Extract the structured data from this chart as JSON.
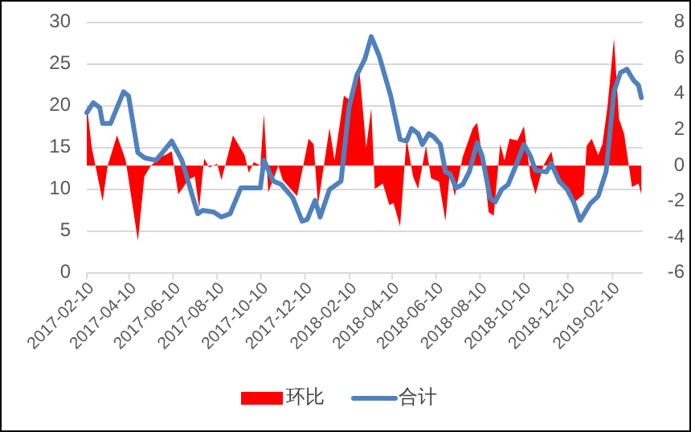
{
  "chart_data": {
    "type": "line",
    "xlim": [
      "2017-02-10",
      "2019-03-24"
    ],
    "xticks": [
      "2017-02-10",
      "2017-04-10",
      "2017-06-10",
      "2017-08-10",
      "2017-10-10",
      "2017-12-10",
      "2018-02-10",
      "2018-04-10",
      "2018-06-10",
      "2018-08-10",
      "2018-10-10",
      "2018-12-10",
      "2019-02-10"
    ],
    "ylim": [
      0,
      30
    ],
    "yticks": [
      0,
      5,
      10,
      15,
      20,
      25,
      30
    ],
    "y2lim": [
      -6,
      8
    ],
    "y2ticks": [
      -6,
      -4,
      -2,
      0,
      2,
      4,
      6,
      8
    ],
    "grid": "y",
    "legend": "bottom",
    "series": [
      {
        "name": "环比",
        "type": "area",
        "axis": "y2",
        "color": "#ff0000",
        "x": [
          "2017-02-10",
          "2017-02-17",
          "2017-03-04",
          "2017-03-11",
          "2017-03-24",
          "2017-04-05",
          "2017-04-22",
          "2017-05-01",
          "2017-05-10",
          "2017-05-24",
          "2017-05-30",
          "2017-06-08",
          "2017-06-17",
          "2017-07-01",
          "2017-07-10",
          "2017-07-16",
          "2017-07-23",
          "2017-07-30",
          "2017-08-10",
          "2017-08-16",
          "2017-09-01",
          "2017-09-17",
          "2017-09-23",
          "2017-09-30",
          "2017-10-09",
          "2017-10-14",
          "2017-10-20",
          "2017-11-03",
          "2017-11-09",
          "2017-11-29",
          "2017-12-15",
          "2017-12-22",
          "2017-12-28",
          "2018-01-13",
          "2018-01-20",
          "2018-02-02",
          "2018-02-09",
          "2018-02-16",
          "2018-02-24",
          "2018-03-05",
          "2018-03-12",
          "2018-03-17",
          "2018-03-28",
          "2018-04-06",
          "2018-04-12",
          "2018-04-21",
          "2018-04-30",
          "2018-05-09",
          "2018-05-16",
          "2018-05-27",
          "2018-06-03",
          "2018-06-14",
          "2018-06-23",
          "2018-06-29",
          "2018-07-06",
          "2018-07-17",
          "2018-07-31",
          "2018-08-06",
          "2018-08-15",
          "2018-08-22",
          "2018-08-29",
          "2018-09-07",
          "2018-09-13",
          "2018-09-20",
          "2018-10-01",
          "2018-10-10",
          "2018-10-19",
          "2018-10-26",
          "2018-11-06",
          "2018-11-17",
          "2018-11-26",
          "2018-12-07",
          "2018-12-18",
          "2019-01-01",
          "2019-01-05",
          "2019-01-12",
          "2019-01-21",
          "2019-01-27",
          "2019-02-03",
          "2019-02-12",
          "2019-02-19",
          "2019-02-26",
          "2019-03-09",
          "2019-03-18",
          "2019-03-22"
        ],
        "values": [
          3.4,
          1.0,
          -2.0,
          0,
          1.7,
          0.3,
          -4.2,
          -0.6,
          0,
          0.5,
          0.6,
          0.8,
          -1.6,
          -0.8,
          -0.6,
          -2.4,
          0.4,
          -0.1,
          0.1,
          -0.8,
          1.7,
          0.6,
          -0.4,
          0.2,
          0,
          2.9,
          -1.5,
          0,
          -0.8,
          -1.7,
          1.5,
          1.2,
          -2.2,
          2.1,
          0.3,
          3.9,
          3.7,
          4.8,
          5.1,
          1.0,
          3.2,
          -1.3,
          -1.0,
          -2.2,
          -2.1,
          -3.4,
          1.5,
          -0.6,
          -1.3,
          1.1,
          -0.7,
          -0.9,
          -3.1,
          -0.4,
          -1.7,
          0.5,
          2.1,
          2.4,
          0,
          -2.6,
          -2.8,
          1.2,
          0.3,
          1.5,
          1.4,
          2.2,
          -0.6,
          -1.6,
          0,
          0.8,
          -1.0,
          -1.3,
          -2.1,
          -1.6,
          1.1,
          1.5,
          0.6,
          1.2,
          3.3,
          7.1,
          2.6,
          1.8,
          -1.2,
          -1.0,
          -1.6
        ]
      },
      {
        "name": "合计",
        "color": "#4f81bd",
        "x": [
          "2017-02-10",
          "2017-02-19",
          "2017-02-28",
          "2017-03-04",
          "2017-03-15",
          "2017-04-02",
          "2017-04-09",
          "2017-04-22",
          "2017-05-01",
          "2017-05-17",
          "2017-05-24",
          "2017-06-08",
          "2017-06-22",
          "2017-07-14",
          "2017-07-21",
          "2017-08-05",
          "2017-08-16",
          "2017-08-28",
          "2017-09-12",
          "2017-09-28",
          "2017-10-09",
          "2017-10-14",
          "2017-10-27",
          "2017-11-07",
          "2017-11-23",
          "2017-12-06",
          "2017-12-13",
          "2017-12-24",
          "2017-12-31",
          "2018-01-13",
          "2018-01-29",
          "2018-02-09",
          "2018-02-20",
          "2018-03-03",
          "2018-03-12",
          "2018-03-23",
          "2018-04-08",
          "2018-04-21",
          "2018-04-30",
          "2018-05-07",
          "2018-05-16",
          "2018-05-22",
          "2018-05-31",
          "2018-06-07",
          "2018-06-16",
          "2018-06-23",
          "2018-06-29",
          "2018-07-08",
          "2018-07-17",
          "2018-07-26",
          "2018-08-06",
          "2018-08-13",
          "2018-08-24",
          "2018-08-31",
          "2018-09-09",
          "2018-09-18",
          "2018-09-29",
          "2018-10-10",
          "2018-10-19",
          "2018-10-26",
          "2018-11-10",
          "2018-11-17",
          "2018-11-28",
          "2018-12-09",
          "2018-12-18",
          "2018-12-27",
          "2019-01-10",
          "2019-01-21",
          "2019-02-01",
          "2019-02-12",
          "2019-02-21",
          "2019-03-02",
          "2019-03-11",
          "2019-03-18",
          "2019-03-22"
        ],
        "values": [
          19.2,
          20.4,
          19.8,
          17.9,
          17.9,
          21.7,
          21.2,
          14.4,
          13.8,
          13.5,
          14.2,
          15.8,
          13.5,
          7.1,
          7.5,
          7.3,
          6.7,
          7.1,
          10.2,
          10.2,
          10.2,
          13.5,
          11.0,
          10.6,
          9.0,
          6.2,
          6.4,
          8.7,
          6.7,
          10.0,
          11.0,
          19.8,
          23.7,
          25.6,
          28.3,
          26.0,
          21.2,
          16.0,
          15.8,
          17.3,
          16.7,
          15.4,
          16.7,
          16.3,
          15.4,
          12.1,
          11.9,
          10.2,
          10.6,
          12.1,
          15.6,
          14.0,
          9.0,
          8.5,
          10.0,
          10.6,
          12.9,
          15.4,
          14.0,
          12.3,
          12.1,
          13.1,
          11.0,
          10.0,
          8.5,
          6.3,
          8.3,
          9.2,
          12.1,
          21.7,
          24.0,
          24.4,
          23.1,
          22.5,
          21.0
        ]
      }
    ]
  }
}
